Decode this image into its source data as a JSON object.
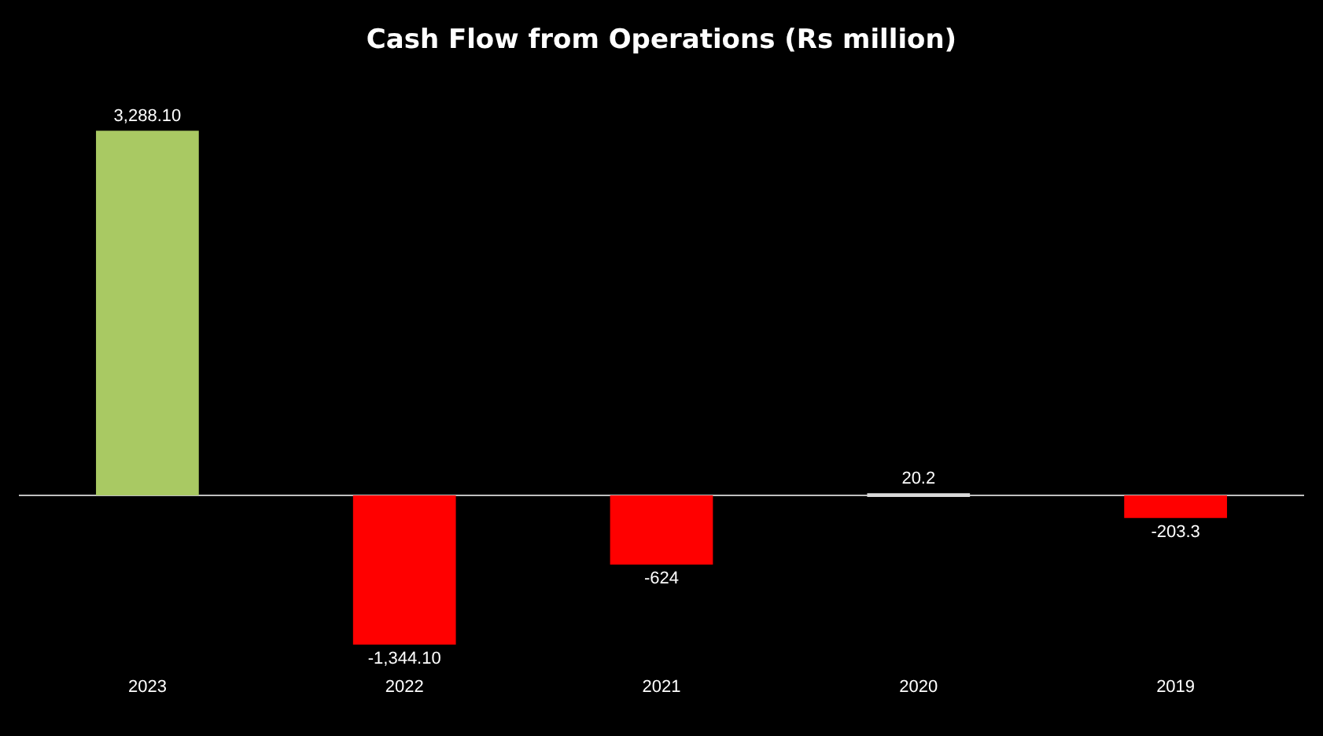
{
  "chart_data": {
    "type": "bar",
    "title": "Cash Flow from Operations (Rs million)",
    "categories": [
      "2023",
      "2022",
      "2021",
      "2020",
      "2019"
    ],
    "values": [
      3288.1,
      -1344.1,
      -624,
      20.2,
      -203.3
    ],
    "value_labels": [
      "3,288.10",
      "-1,344.10",
      "-624",
      "20.2",
      "-203.3"
    ],
    "colors": [
      "#a9c963",
      "#ff0000",
      "#ff0000",
      "#d9d9d9",
      "#ff0000"
    ],
    "grid": false,
    "legend": false
  }
}
